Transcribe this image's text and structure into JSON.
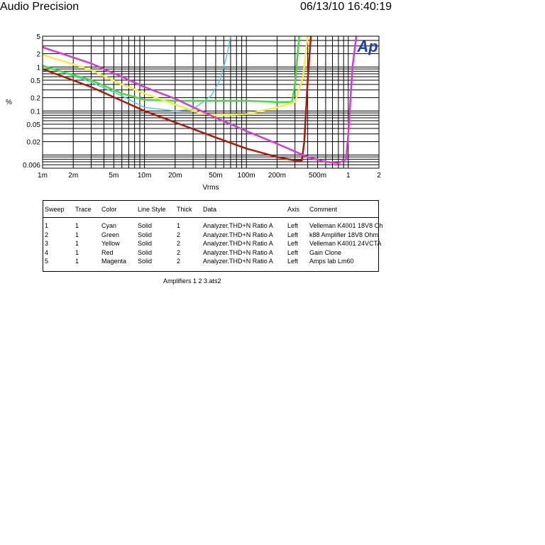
{
  "header": {
    "brand": "Audio Precision",
    "timestamp": "06/13/10 16:40:19"
  },
  "logo": {
    "text": "Ap",
    "color": "#1a3cc8"
  },
  "chart_data": {
    "type": "line",
    "xlabel": "Vrms",
    "ylabel": "%",
    "x_scale": "log",
    "y_scale": "log",
    "xlim": [
      0.001,
      2
    ],
    "ylim": [
      0.005,
      5
    ],
    "grid": true,
    "x_ticks": [
      {
        "v": 0.001,
        "label": "1m"
      },
      {
        "v": 0.002,
        "label": "2m"
      },
      {
        "v": 0.005,
        "label": "5m"
      },
      {
        "v": 0.01,
        "label": "10m"
      },
      {
        "v": 0.02,
        "label": "20m"
      },
      {
        "v": 0.05,
        "label": "50m"
      },
      {
        "v": 0.1,
        "label": "100m"
      },
      {
        "v": 0.2,
        "label": "200m"
      },
      {
        "v": 0.5,
        "label": "500m"
      },
      {
        "v": 1,
        "label": "1"
      },
      {
        "v": 2,
        "label": "2"
      }
    ],
    "y_ticks": [
      {
        "v": 5,
        "label": "5"
      },
      {
        "v": 2,
        "label": "2"
      },
      {
        "v": 1,
        "label": "1"
      },
      {
        "v": 0.5,
        "label": "0.5"
      },
      {
        "v": 0.2,
        "label": "0.2"
      },
      {
        "v": 0.1,
        "label": "0.1"
      },
      {
        "v": 0.05,
        "label": "0.05"
      },
      {
        "v": 0.02,
        "label": "0.02"
      },
      {
        "v": 0.006,
        "label": "0.006"
      }
    ],
    "series": [
      {
        "sweep": "1",
        "color": "#55c8e6",
        "width": 1,
        "points": [
          [
            0.001,
            1.1
          ],
          [
            0.003,
            0.45
          ],
          [
            0.006,
            0.22
          ],
          [
            0.01,
            0.12
          ],
          [
            0.02,
            0.1
          ],
          [
            0.03,
            0.11
          ],
          [
            0.045,
            0.22
          ],
          [
            0.055,
            0.5
          ],
          [
            0.065,
            2
          ],
          [
            0.07,
            5
          ]
        ]
      },
      {
        "sweep": "2",
        "color": "#3ee03a",
        "width": 2,
        "points": [
          [
            0.001,
            1.05
          ],
          [
            0.003,
            0.5
          ],
          [
            0.006,
            0.25
          ],
          [
            0.01,
            0.18
          ],
          [
            0.02,
            0.17
          ],
          [
            0.05,
            0.17
          ],
          [
            0.1,
            0.17
          ],
          [
            0.2,
            0.16
          ],
          [
            0.28,
            0.16
          ],
          [
            0.3,
            0.4
          ],
          [
            0.33,
            5
          ]
        ]
      },
      {
        "sweep": "3",
        "color": "#f0f040",
        "width": 2,
        "points": [
          [
            0.001,
            1.9
          ],
          [
            0.003,
            0.85
          ],
          [
            0.006,
            0.4
          ],
          [
            0.01,
            0.25
          ],
          [
            0.02,
            0.14
          ],
          [
            0.035,
            0.09
          ],
          [
            0.05,
            0.08
          ],
          [
            0.1,
            0.085
          ],
          [
            0.2,
            0.12
          ],
          [
            0.3,
            0.16
          ],
          [
            0.36,
            0.6
          ],
          [
            0.4,
            5
          ]
        ]
      },
      {
        "sweep": "4",
        "color": "#b01808",
        "width": 2,
        "points": [
          [
            0.001,
            0.9
          ],
          [
            0.003,
            0.35
          ],
          [
            0.006,
            0.17
          ],
          [
            0.01,
            0.1
          ],
          [
            0.02,
            0.055
          ],
          [
            0.05,
            0.025
          ],
          [
            0.1,
            0.014
          ],
          [
            0.2,
            0.009
          ],
          [
            0.3,
            0.0075
          ],
          [
            0.35,
            0.0075
          ],
          [
            0.37,
            0.02
          ],
          [
            0.4,
            0.5
          ],
          [
            0.43,
            5
          ]
        ]
      },
      {
        "sweep": "5",
        "color": "#d838d8",
        "width": 2,
        "points": [
          [
            0.001,
            2.8
          ],
          [
            0.003,
            1.2
          ],
          [
            0.006,
            0.6
          ],
          [
            0.01,
            0.35
          ],
          [
            0.02,
            0.19
          ],
          [
            0.05,
            0.07
          ],
          [
            0.1,
            0.035
          ],
          [
            0.2,
            0.018
          ],
          [
            0.4,
            0.009
          ],
          [
            0.6,
            0.007
          ],
          [
            0.8,
            0.0065
          ],
          [
            0.95,
            0.008
          ],
          [
            1.0,
            0.03
          ],
          [
            1.1,
            1
          ],
          [
            1.2,
            5
          ]
        ]
      }
    ]
  },
  "legend": {
    "headers": [
      "Sweep",
      "Trace",
      "Color",
      "Line Style",
      "Thick",
      "Data",
      "Axis",
      "Comment"
    ],
    "rows": [
      [
        "1",
        "1",
        "Cyan",
        "Solid",
        "1",
        "Analyzer.THD+N Ratio A",
        "Left",
        "Velleman K4001 18V8 Oh"
      ],
      [
        "2",
        "1",
        "Green",
        "Solid",
        "2",
        "Analyzer.THD+N Ratio A",
        "Left",
        "k88 Amplifier 18V8 Ohm"
      ],
      [
        "3",
        "1",
        "Yellow",
        "Solid",
        "2",
        "Analyzer.THD+N Ratio A",
        "Left",
        "Velleman K4001 24VCTA"
      ],
      [
        "4",
        "1",
        "Red",
        "Solid",
        "2",
        "Analyzer.THD+N Ratio A",
        "Left",
        "Gain Clone"
      ],
      [
        "5",
        "1",
        "Magenta",
        "Solid",
        "2",
        "Analyzer.THD+N Ratio A",
        "Left",
        "Amps lab Lm60"
      ]
    ]
  },
  "footer": {
    "filename": "Amplifiers 1 2 3.ats2"
  }
}
